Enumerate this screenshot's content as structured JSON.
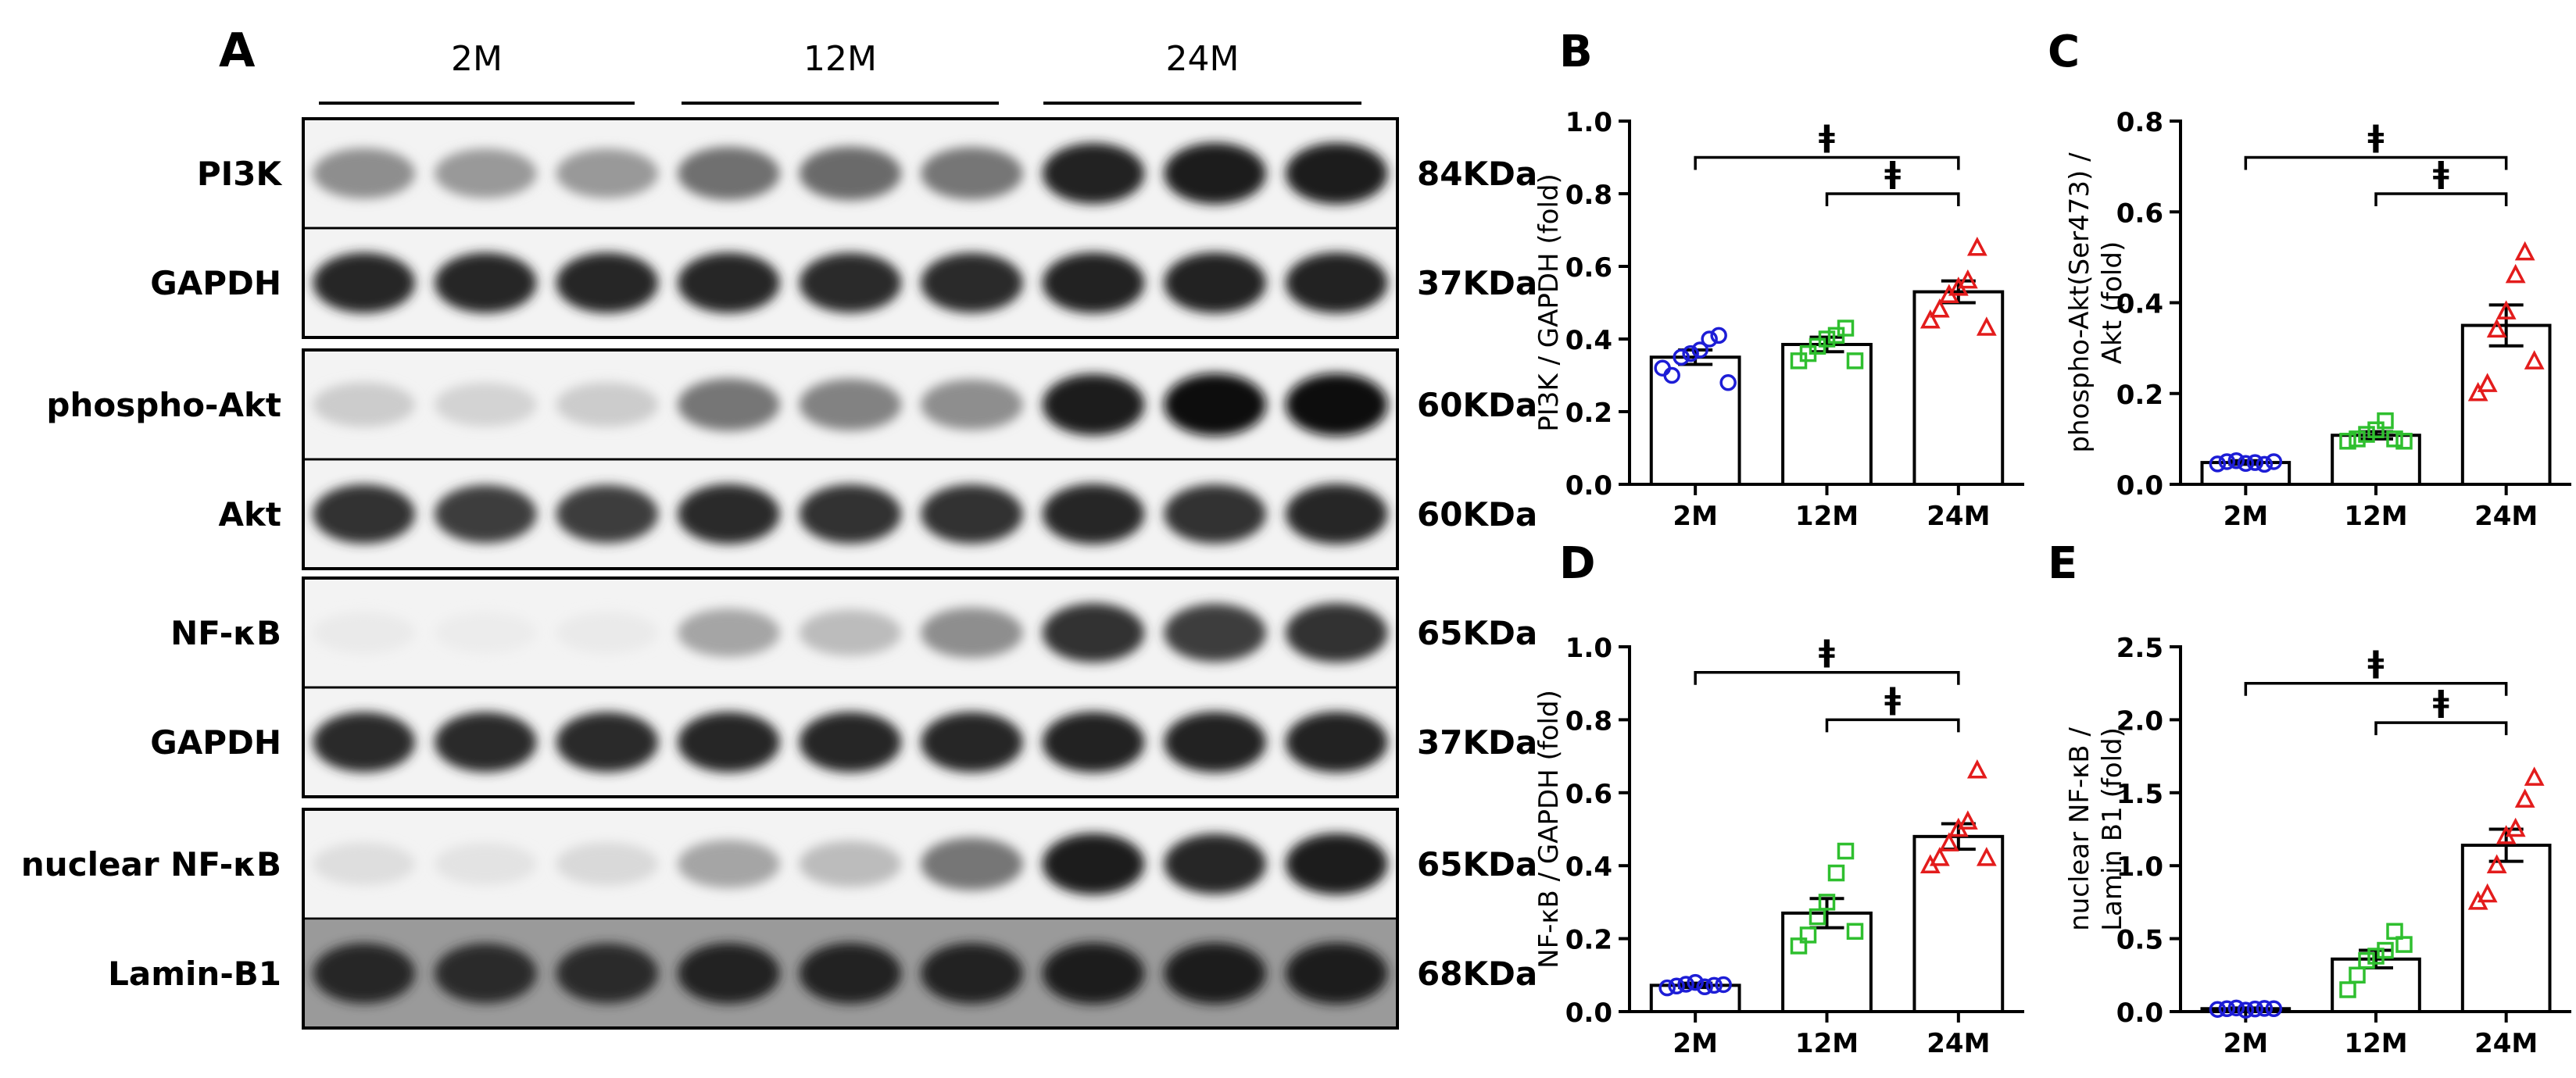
{
  "panel_a": {
    "letter": "A",
    "groups": [
      "2M",
      "12M",
      "24M"
    ],
    "rows": [
      {
        "protein": "PI3K",
        "size": "84KDa",
        "intensity": [
          0.45,
          0.4,
          0.4,
          0.58,
          0.6,
          0.55,
          0.92,
          0.95,
          0.95
        ]
      },
      {
        "protein": "GAPDH",
        "size": "37KDa",
        "intensity": [
          0.9,
          0.9,
          0.9,
          0.9,
          0.88,
          0.88,
          0.92,
          0.92,
          0.92
        ]
      },
      {
        "protein": "phospho-Akt",
        "size": "60KDa",
        "intensity": [
          0.18,
          0.15,
          0.18,
          0.55,
          0.5,
          0.45,
          0.95,
          1.0,
          1.0
        ]
      },
      {
        "protein": "Akt",
        "size": "60KDa",
        "intensity": [
          0.85,
          0.8,
          0.8,
          0.88,
          0.85,
          0.85,
          0.9,
          0.85,
          0.9
        ]
      },
      {
        "protein": "NF-κB",
        "size": "65KDa",
        "intensity": [
          0.05,
          0.04,
          0.05,
          0.35,
          0.25,
          0.45,
          0.85,
          0.8,
          0.85
        ]
      },
      {
        "protein": "GAPDH",
        "size": "37KDa",
        "intensity": [
          0.88,
          0.88,
          0.88,
          0.9,
          0.9,
          0.9,
          0.92,
          0.92,
          0.92
        ]
      },
      {
        "protein": "nuclear NF-κB",
        "size": "65KDa",
        "intensity": [
          0.1,
          0.08,
          0.12,
          0.35,
          0.25,
          0.55,
          0.95,
          0.9,
          0.95
        ]
      },
      {
        "protein": "Lamin-B1",
        "size": "68KDa",
        "intensity": [
          0.9,
          0.88,
          0.88,
          0.92,
          0.92,
          0.92,
          0.95,
          0.95,
          0.95
        ]
      }
    ]
  },
  "colors": {
    "2M": "#1d1dd6",
    "12M": "#2fbf2f",
    "24M": "#e31c1c"
  },
  "chart_data": [
    {
      "letter": "B",
      "type": "bar",
      "ylabel": [
        "PI3K / GAPDH (fold)"
      ],
      "categories": [
        "2M",
        "12M",
        "24M"
      ],
      "ylim": [
        0,
        1.0
      ],
      "yticks": [
        "0.0",
        "0.2",
        "0.4",
        "0.6",
        "0.8",
        "1.0"
      ],
      "values": [
        0.35,
        0.385,
        0.53
      ],
      "sem": [
        0.02,
        0.02,
        0.03
      ],
      "points": [
        [
          0.32,
          0.3,
          0.35,
          0.36,
          0.37,
          0.4,
          0.41,
          0.28
        ],
        [
          0.34,
          0.36,
          0.38,
          0.4,
          0.41,
          0.43,
          0.34
        ],
        [
          0.45,
          0.48,
          0.52,
          0.54,
          0.56,
          0.65,
          0.43
        ]
      ],
      "markers": [
        "circle",
        "square",
        "triangle"
      ],
      "significance": [
        {
          "from": "2M",
          "to": "24M",
          "y": 0.9,
          "label": "ǂ"
        },
        {
          "from": "12M",
          "to": "24M",
          "y": 0.8,
          "label": "ǂ"
        }
      ]
    },
    {
      "letter": "C",
      "type": "bar",
      "ylabel": [
        "phospho-Akt(Ser473) /",
        "Akt (fold)"
      ],
      "categories": [
        "2M",
        "12M",
        "24M"
      ],
      "ylim": [
        0,
        0.8
      ],
      "yticks": [
        "0.0",
        "0.2",
        "0.4",
        "0.6",
        "0.8"
      ],
      "values": [
        0.048,
        0.108,
        0.35
      ],
      "sem": [
        0.004,
        0.008,
        0.045
      ],
      "points": [
        [
          0.045,
          0.05,
          0.052,
          0.046,
          0.048,
          0.044,
          0.05
        ],
        [
          0.095,
          0.1,
          0.11,
          0.12,
          0.14,
          0.1,
          0.095
        ],
        [
          0.2,
          0.22,
          0.34,
          0.38,
          0.46,
          0.51,
          0.27
        ]
      ],
      "markers": [
        "circle",
        "square",
        "triangle"
      ],
      "significance": [
        {
          "from": "2M",
          "to": "24M",
          "y": 0.72,
          "label": "ǂ"
        },
        {
          "from": "12M",
          "to": "24M",
          "y": 0.64,
          "label": "ǂ"
        }
      ]
    },
    {
      "letter": "D",
      "type": "bar",
      "ylabel": [
        "NF-κB / GAPDH (fold)"
      ],
      "categories": [
        "2M",
        "12M",
        "24M"
      ],
      "ylim": [
        0,
        1.0
      ],
      "yticks": [
        "0.0",
        "0.2",
        "0.4",
        "0.6",
        "0.8",
        "1.0"
      ],
      "values": [
        0.072,
        0.27,
        0.48
      ],
      "sem": [
        0.006,
        0.04,
        0.035
      ],
      "points": [
        [
          0.065,
          0.07,
          0.075,
          0.08,
          0.068,
          0.072,
          0.074
        ],
        [
          0.18,
          0.21,
          0.26,
          0.3,
          0.38,
          0.44,
          0.22
        ],
        [
          0.4,
          0.42,
          0.46,
          0.5,
          0.52,
          0.66,
          0.42
        ]
      ],
      "markers": [
        "circle",
        "square",
        "triangle"
      ],
      "significance": [
        {
          "from": "2M",
          "to": "24M",
          "y": 0.93,
          "label": "ǂ"
        },
        {
          "from": "12M",
          "to": "24M",
          "y": 0.8,
          "label": "ǂ"
        }
      ]
    },
    {
      "letter": "E",
      "type": "bar",
      "ylabel": [
        "nuclear NF-κB /",
        "Lamin B1 (fold)"
      ],
      "categories": [
        "2M",
        "12M",
        "24M"
      ],
      "ylim": [
        0,
        2.5
      ],
      "yticks": [
        "0.0",
        "0.5",
        "1.0",
        "1.5",
        "2.0",
        "2.5"
      ],
      "values": [
        0.02,
        0.36,
        1.14
      ],
      "sem": [
        0.005,
        0.06,
        0.11
      ],
      "points": [
        [
          0.015,
          0.02,
          0.025,
          0.01,
          0.018,
          0.022,
          0.02
        ],
        [
          0.15,
          0.25,
          0.35,
          0.38,
          0.42,
          0.55,
          0.46
        ],
        [
          0.75,
          0.8,
          1.0,
          1.2,
          1.25,
          1.45,
          1.6
        ]
      ],
      "markers": [
        "circle",
        "square",
        "triangle"
      ],
      "significance": [
        {
          "from": "2M",
          "to": "24M",
          "y": 2.25,
          "label": "ǂ"
        },
        {
          "from": "12M",
          "to": "24M",
          "y": 1.98,
          "label": "ǂ"
        }
      ]
    }
  ]
}
